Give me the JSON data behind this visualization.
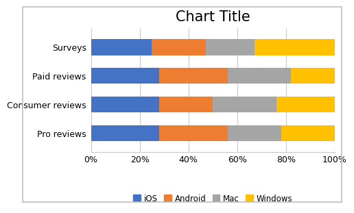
{
  "title": "Chart Title",
  "categories": [
    "Pro reviews",
    "Consumer reviews",
    "Paid reviews",
    "Surveys"
  ],
  "series": {
    "iOS": [
      0.28,
      0.28,
      0.28,
      0.25
    ],
    "Android": [
      0.28,
      0.22,
      0.28,
      0.22
    ],
    "Mac": [
      0.22,
      0.26,
      0.26,
      0.2
    ],
    "Windows": [
      0.22,
      0.24,
      0.18,
      0.33
    ]
  },
  "colors": {
    "iOS": "#4472C4",
    "Android": "#ED7D31",
    "Mac": "#A5A5A5",
    "Windows": "#FFC000"
  },
  "xlim": [
    0,
    1
  ],
  "xticks": [
    0,
    0.2,
    0.4,
    0.6,
    0.8,
    1.0
  ],
  "xticklabels": [
    "0%",
    "20%",
    "40%",
    "60%",
    "80%",
    "100%"
  ],
  "title_fontsize": 15,
  "tick_fontsize": 9,
  "legend_fontsize": 8.5,
  "bar_height": 0.55,
  "background_color": "#FFFFFF",
  "plot_bg_color": "#FFFFFF",
  "grid_color": "#C8C8C8",
  "border_color": "#BFBFBF"
}
